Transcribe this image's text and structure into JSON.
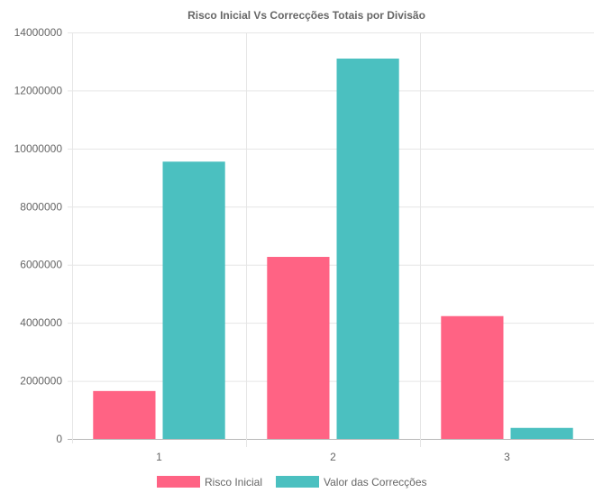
{
  "chart_data": {
    "type": "bar",
    "title": "Risco Inicial Vs Correcções Totais por Divisão",
    "xlabel": "",
    "ylabel": "",
    "categories": [
      "1",
      "2",
      "3"
    ],
    "series": [
      {
        "name": "Risco Inicial",
        "color": "#ff6384",
        "values": [
          1650000,
          6270000,
          4230000
        ]
      },
      {
        "name": "Valor das Correcções",
        "color": "#4bc0c0",
        "values": [
          9550000,
          13100000,
          380000
        ]
      }
    ],
    "ylim": [
      0,
      14000000
    ],
    "yticks": [
      "0",
      "2000000",
      "4000000",
      "6000000",
      "8000000",
      "10000000",
      "12000000",
      "14000000"
    ],
    "grid": true,
    "legend": "bottom"
  }
}
